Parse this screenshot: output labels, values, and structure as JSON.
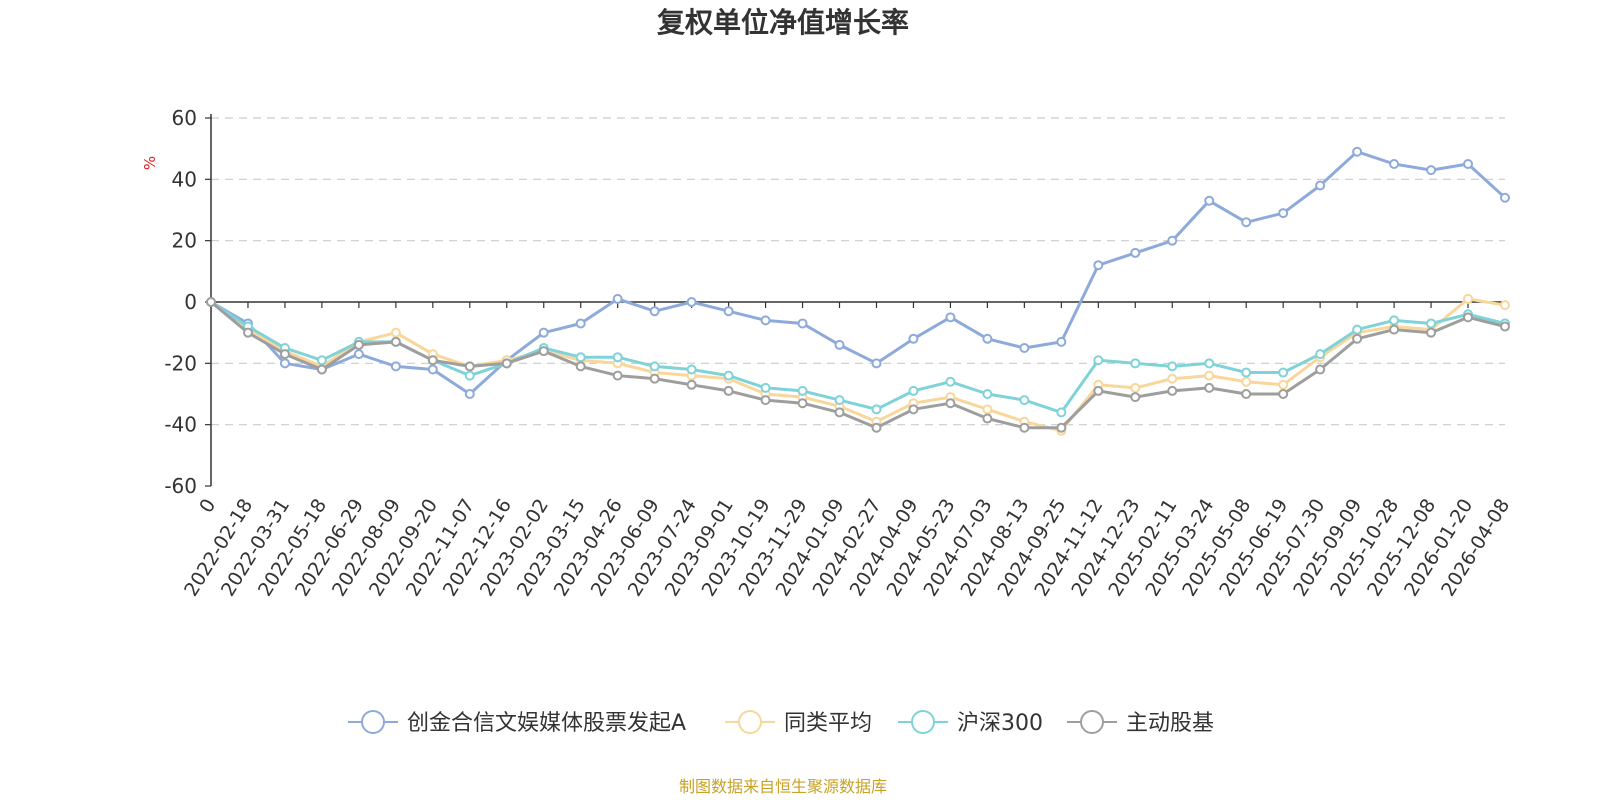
{
  "chart_data": {
    "type": "line",
    "title": "复权单位净值增长率",
    "ylabel": "%",
    "ylim": [
      -60,
      60
    ],
    "yticks": [
      60,
      40,
      20,
      0,
      -20,
      -40,
      -60
    ],
    "grid": true,
    "legend_position": "bottom",
    "categories": [
      "0",
      "2022-02-18",
      "2022-03-31",
      "2022-05-18",
      "2022-06-29",
      "2022-08-09",
      "2022-09-20",
      "2022-11-07",
      "2022-12-16",
      "2023-02-02",
      "2023-03-15",
      "2023-04-26",
      "2023-06-09",
      "2023-07-24",
      "2023-09-01",
      "2023-10-19",
      "2023-11-29",
      "2024-01-09",
      "2024-02-27",
      "2024-04-09",
      "2024-05-23",
      "2024-07-03",
      "2024-08-13",
      "2024-09-25",
      "2024-11-12",
      "2024-12-23",
      "2025-02-11",
      "2025-03-24",
      "2025-05-08",
      "2025-06-19",
      "2025-07-30",
      "2025-09-09",
      "2025-10-28",
      "2025-12-08",
      "2026-01-20",
      "2026-04-08"
    ],
    "series": [
      {
        "name": "创金合信文娱媒体股票发起A",
        "color": "#8eaadb",
        "values": [
          0,
          -7,
          -20,
          -22,
          -17,
          -21,
          -22,
          -30,
          -19,
          -10,
          -7,
          1,
          -3,
          0,
          -3,
          -6,
          -7,
          -14,
          -20,
          -12,
          -5,
          -12,
          -15,
          -13,
          12,
          16,
          20,
          33,
          26,
          29,
          38,
          49,
          45,
          43,
          45,
          34
        ]
      },
      {
        "name": "同类平均",
        "color": "#f9d69a",
        "values": [
          0,
          -9,
          -16,
          -21,
          -13,
          -10,
          -17,
          -21,
          -19,
          -16,
          -19,
          -20,
          -23,
          -24,
          -25,
          -30,
          -31,
          -34,
          -39,
          -33,
          -31,
          -35,
          -39,
          -42,
          -27,
          -28,
          -25,
          -24,
          -26,
          -27,
          -18,
          -10,
          -8,
          -9,
          1,
          -1
        ]
      },
      {
        "name": "沪深300",
        "color": "#7fd3d8",
        "values": [
          0,
          -8,
          -15,
          -19,
          -13,
          -13,
          -19,
          -24,
          -20,
          -15,
          -18,
          -18,
          -21,
          -22,
          -24,
          -28,
          -29,
          -32,
          -35,
          -29,
          -26,
          -30,
          -32,
          -36,
          -19,
          -20,
          -21,
          -20,
          -23,
          -23,
          -17,
          -9,
          -6,
          -7,
          -4,
          -7
        ]
      },
      {
        "name": "主动股基",
        "color": "#9e9e9e",
        "values": [
          0,
          -10,
          -17,
          -22,
          -14,
          -13,
          -19,
          -21,
          -20,
          -16,
          -21,
          -24,
          -25,
          -27,
          -29,
          -32,
          -33,
          -36,
          -41,
          -35,
          -33,
          -38,
          -41,
          -41,
          -29,
          -31,
          -29,
          -28,
          -30,
          -30,
          -22,
          -12,
          -9,
          -10,
          -5,
          -8
        ]
      }
    ]
  },
  "footer": {
    "source": "制图数据来自恒生聚源数据库"
  }
}
